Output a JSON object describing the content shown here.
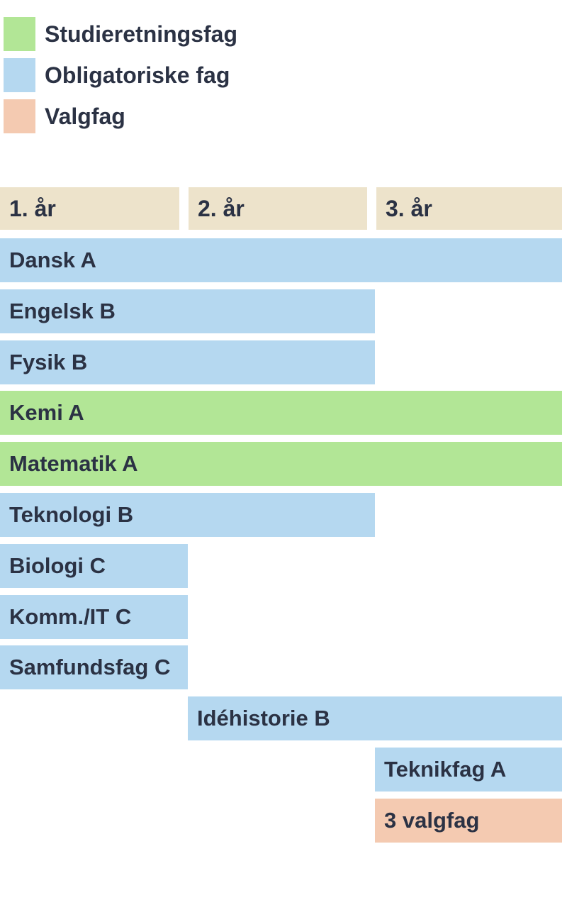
{
  "colors": {
    "background": "#ffffff",
    "text": "#2b3244",
    "header": "#ede3cb",
    "groups": {
      "Studieretningsfag": "#b2e696",
      "Obligatoriske fag": "#b5d8f0",
      "Valgfag": "#f4cab1"
    }
  },
  "legend": {
    "items": [
      {
        "label": "Studieretningsfag",
        "group": "Studieretningsfag",
        "key": "studieretningsfag"
      },
      {
        "label": "Obligatoriske fag",
        "group": "Obligatoriske fag",
        "key": "obligatoriske-fag"
      },
      {
        "label": "Valgfag",
        "group": "Valgfag",
        "key": "valgfag"
      }
    ]
  },
  "chart_data": {
    "type": "bar",
    "orientation": "horizontal-span",
    "title": "",
    "x_categories": [
      "1. år",
      "2. år",
      "3. år"
    ],
    "legend": [
      "Studieretningsfag",
      "Obligatoriske fag",
      "Valgfag"
    ],
    "legend_position": "top-left",
    "grid": false,
    "x_range_years": [
      1,
      3
    ],
    "rows": [
      {
        "label": "Dansk A",
        "group": "Obligatoriske fag",
        "start_year": 1,
        "end_year": 3
      },
      {
        "label": "Engelsk B",
        "group": "Obligatoriske fag",
        "start_year": 1,
        "end_year": 2
      },
      {
        "label": "Fysik B",
        "group": "Obligatoriske fag",
        "start_year": 1,
        "end_year": 2
      },
      {
        "label": "Kemi A",
        "group": "Studieretningsfag",
        "start_year": 1,
        "end_year": 3
      },
      {
        "label": "Matematik A",
        "group": "Studieretningsfag",
        "start_year": 1,
        "end_year": 3
      },
      {
        "label": "Teknologi B",
        "group": "Obligatoriske fag",
        "start_year": 1,
        "end_year": 2
      },
      {
        "label": "Biologi C",
        "group": "Obligatoriske fag",
        "start_year": 1,
        "end_year": 1
      },
      {
        "label": "Komm./IT C",
        "group": "Obligatoriske fag",
        "start_year": 1,
        "end_year": 1
      },
      {
        "label": "Samfundsfag C",
        "group": "Obligatoriske fag",
        "start_year": 1,
        "end_year": 1
      },
      {
        "label": "Idéhistorie B",
        "group": "Obligatoriske fag",
        "start_year": 2,
        "end_year": 3
      },
      {
        "label": "Teknikfag A",
        "group": "Obligatoriske fag",
        "start_year": 3,
        "end_year": 3
      },
      {
        "label": "3 valgfag",
        "group": "Valgfag",
        "start_year": 3,
        "end_year": 3
      }
    ]
  }
}
